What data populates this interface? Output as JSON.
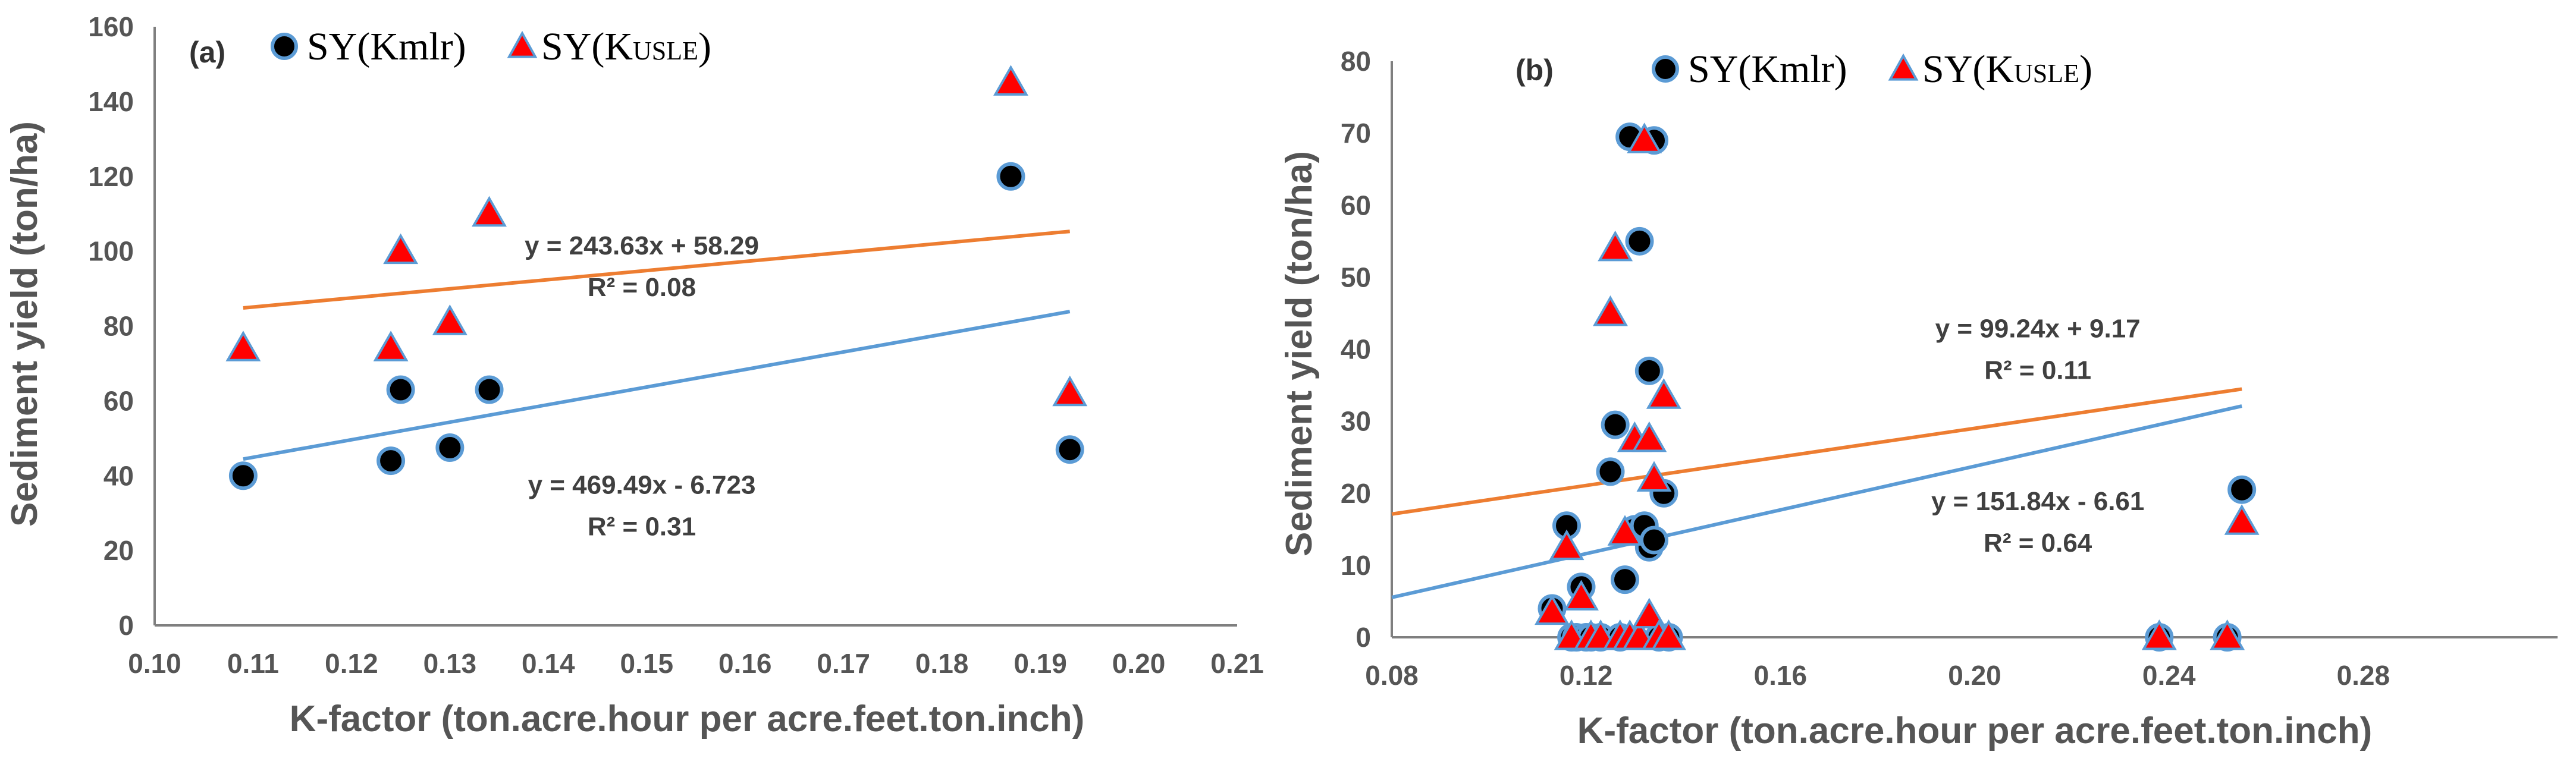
{
  "chart_data": [
    {
      "type": "scatter",
      "panel_label": "(a)",
      "xlabel": "K-factor (ton.acre.hour per acre.feet.ton.inch)",
      "ylabel": "Sediment yield (ton/ha)",
      "xlim": [
        0.1,
        0.21
      ],
      "ylim": [
        0,
        160
      ],
      "xticks": [
        "0.10",
        "0.11",
        "0.12",
        "0.13",
        "0.14",
        "0.15",
        "0.16",
        "0.17",
        "0.18",
        "0.19",
        "0.20",
        "0.21"
      ],
      "yticks": [
        "0",
        "20",
        "40",
        "60",
        "80",
        "100",
        "120",
        "140",
        "160"
      ],
      "legend": {
        "placement": "top-left",
        "kmlr_label": "SY(Kmlr)",
        "kusle_main": "SY(K",
        "kusle_sub": "USLE",
        "kusle_close": ")"
      },
      "series": [
        {
          "name": "SY(Kmlr)",
          "marker": "circle",
          "color": "#000000",
          "edge": "#5b9bd5",
          "x": [
            0.109,
            0.124,
            0.125,
            0.13,
            0.134,
            0.187,
            0.193
          ],
          "y": [
            40,
            44,
            63,
            47.5,
            63,
            120,
            47
          ]
        },
        {
          "name": "SY(KUSLE)",
          "marker": "triangle",
          "color": "#ff0000",
          "edge": "#5b9bd5",
          "x": [
            0.109,
            0.124,
            0.125,
            0.13,
            0.134,
            0.187,
            0.193
          ],
          "y": [
            74,
            74,
            100,
            81,
            110,
            145,
            62
          ]
        }
      ],
      "trendlines": [
        {
          "series": "SY(KUSLE)",
          "slope": 243.63,
          "intercept": 58.29,
          "x_range": [
            0.109,
            0.193
          ],
          "color": "#ed7d31",
          "equation": "y = 243.63x + 58.29",
          "r2": "R² = 0.08",
          "label_at": [
            0.1495,
            96
          ]
        },
        {
          "series": "SY(Kmlr)",
          "slope": 469.49,
          "intercept": -6.723,
          "x_range": [
            0.109,
            0.193
          ],
          "color": "#5b9bd5",
          "equation": "y = 469.49x - 6.723",
          "r2": "R² = 0.31",
          "label_at": [
            0.1495,
            32
          ]
        }
      ]
    },
    {
      "type": "scatter",
      "panel_label": "(b)",
      "xlabel": "K-factor (ton.acre.hour per acre.feet.ton.inch)",
      "ylabel": "Sediment yield (ton/ha)",
      "xlim": [
        0.08,
        0.32
      ],
      "ylim": [
        0,
        80
      ],
      "xticks": [
        "0.08",
        "0.12",
        "0.16",
        "0.20",
        "0.24",
        "0.28"
      ],
      "yticks": [
        "0",
        "10",
        "20",
        "30",
        "40",
        "50",
        "60",
        "70",
        "80"
      ],
      "legend": {
        "placement": "top-center",
        "kmlr_label": "SY(Kmlr)",
        "kusle_main": "SY(K",
        "kusle_sub": "USLE",
        "kusle_close": ")"
      },
      "series": [
        {
          "name": "SY(Kmlr)",
          "marker": "circle",
          "color": "#000000",
          "edge": "#5b9bd5",
          "x": [
            0.113,
            0.116,
            0.117,
            0.118,
            0.119,
            0.12,
            0.121,
            0.123,
            0.125,
            0.126,
            0.127,
            0.128,
            0.129,
            0.13,
            0.131,
            0.132,
            0.133,
            0.133,
            0.134,
            0.134,
            0.135,
            0.136,
            0.137,
            0.238,
            0.252,
            0.255
          ],
          "y": [
            4,
            15.5,
            0,
            0,
            7,
            0,
            0,
            0,
            23,
            29.5,
            0,
            8,
            69.5,
            15,
            55,
            15.5,
            37,
            12.5,
            69,
            13.5,
            0,
            20,
            0,
            0,
            0,
            20.5
          ]
        },
        {
          "name": "SY(KUSLE)",
          "marker": "triangle",
          "color": "#ff0000",
          "edge": "#5b9bd5",
          "x": [
            0.113,
            0.116,
            0.117,
            0.119,
            0.121,
            0.123,
            0.125,
            0.126,
            0.127,
            0.128,
            0.129,
            0.13,
            0.131,
            0.132,
            0.133,
            0.133,
            0.134,
            0.135,
            0.136,
            0.137,
            0.238,
            0.252,
            0.255
          ],
          "y": [
            3.5,
            12.5,
            0,
            5.5,
            0,
            0,
            45,
            54,
            0,
            14.5,
            0,
            27.5,
            0,
            69,
            27.5,
            3,
            22,
            0,
            33.5,
            0,
            0,
            0,
            16
          ]
        }
      ],
      "trendlines": [
        {
          "series": "SY(KUSLE)",
          "slope": 99.24,
          "intercept": 9.17,
          "x_range": [
            0.08,
            0.255
          ],
          "color": "#ed7d31",
          "equation": "y = 99.24x + 9.17",
          "r2": "R² = 0.11",
          "label_at": [
            0.213,
            40
          ]
        },
        {
          "series": "SY(Kmlr)",
          "slope": 151.84,
          "intercept": -6.61,
          "x_range": [
            0.08,
            0.255
          ],
          "color": "#5b9bd5",
          "equation": "y = 151.84x - 6.61",
          "r2": "R² = 0.64",
          "label_at": [
            0.213,
            16
          ]
        }
      ]
    }
  ]
}
